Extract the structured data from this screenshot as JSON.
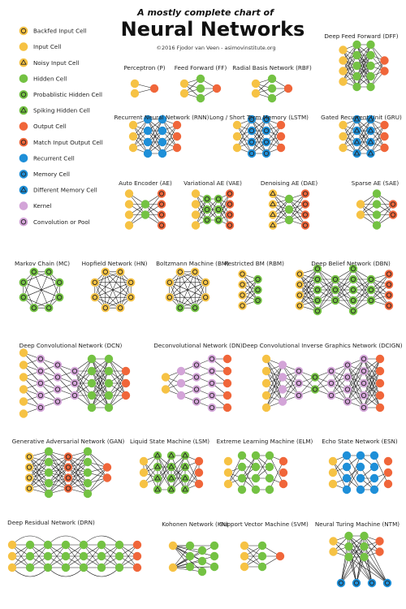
{
  "header": {
    "subtitle": "A mostly complete chart of",
    "title": "Neural Networks",
    "credit": "©2016 Fjodor van Veen - asimovinstitute.org"
  },
  "legend": [
    {
      "key": "backfed_input",
      "label": "Backfed Input Cell"
    },
    {
      "key": "input",
      "label": "Input Cell"
    },
    {
      "key": "noisy_input",
      "label": "Noisy Input Cell"
    },
    {
      "key": "hidden",
      "label": "Hidden Cell"
    },
    {
      "key": "probabilistic_hidden",
      "label": "Probablistic Hidden Cell"
    },
    {
      "key": "spiking_hidden",
      "label": "Spiking Hidden Cell"
    },
    {
      "key": "output",
      "label": "Output Cell"
    },
    {
      "key": "match_io",
      "label": "Match Input Output Cell"
    },
    {
      "key": "recurrent",
      "label": "Recurrent Cell"
    },
    {
      "key": "memory",
      "label": "Memory Cell"
    },
    {
      "key": "different_memory",
      "label": "Different Memory Cell"
    },
    {
      "key": "kernel",
      "label": "Kernel"
    },
    {
      "key": "conv_pool",
      "label": "Convolution or Pool"
    }
  ],
  "colors": {
    "yellow": "#f6c244",
    "green": "#74c243",
    "orange": "#f0663a",
    "blue": "#1e8fd8",
    "pink": "#d3a4d8",
    "ring": "#222222",
    "edge": "#1a1a1a"
  },
  "networks": [
    {
      "key": "p",
      "label": "Perceptron (P)"
    },
    {
      "key": "ff",
      "label": "Feed Forward (FF)"
    },
    {
      "key": "rbf",
      "label": "Radial Basis Network (RBF)"
    },
    {
      "key": "dff",
      "label": "Deep Feed Forward (DFF)"
    },
    {
      "key": "rnn",
      "label": "Recurrent Neural Network (RNN)"
    },
    {
      "key": "lstm",
      "label": "Long / Short Term Memory (LSTM)"
    },
    {
      "key": "gru",
      "label": "Gated Recurrent Unit (GRU)"
    },
    {
      "key": "ae",
      "label": "Auto Encoder (AE)"
    },
    {
      "key": "vae",
      "label": "Variational AE (VAE)"
    },
    {
      "key": "dae",
      "label": "Denoising AE (DAE)"
    },
    {
      "key": "sae",
      "label": "Sparse AE (SAE)"
    },
    {
      "key": "mc",
      "label": "Markov Chain (MC)"
    },
    {
      "key": "hn",
      "label": "Hopfield Network (HN)"
    },
    {
      "key": "bm",
      "label": "Boltzmann Machine (BM)"
    },
    {
      "key": "rbm",
      "label": "Restricted BM (RBM)"
    },
    {
      "key": "dbn",
      "label": "Deep Belief Network (DBN)"
    },
    {
      "key": "dcn",
      "label": "Deep Convolutional Network (DCN)"
    },
    {
      "key": "dn",
      "label": "Deconvolutional Network (DN)"
    },
    {
      "key": "dcign",
      "label": "Deep Convolutional Inverse Graphics Network (DCIGN)"
    },
    {
      "key": "gan",
      "label": "Generative Adversarial Network (GAN)"
    },
    {
      "key": "lsm",
      "label": "Liquid State Machine (LSM)"
    },
    {
      "key": "elm",
      "label": "Extreme Learning Machine (ELM)"
    },
    {
      "key": "esn",
      "label": "Echo State Network (ESN)"
    },
    {
      "key": "drn",
      "label": "Deep Residual Network (DRN)"
    },
    {
      "key": "kn",
      "label": "Kohonen Network (KN)"
    },
    {
      "key": "svm",
      "label": "Support Vector Machine (SVM)"
    },
    {
      "key": "ntm",
      "label": "Neural Turing Machine (NTM)"
    }
  ]
}
